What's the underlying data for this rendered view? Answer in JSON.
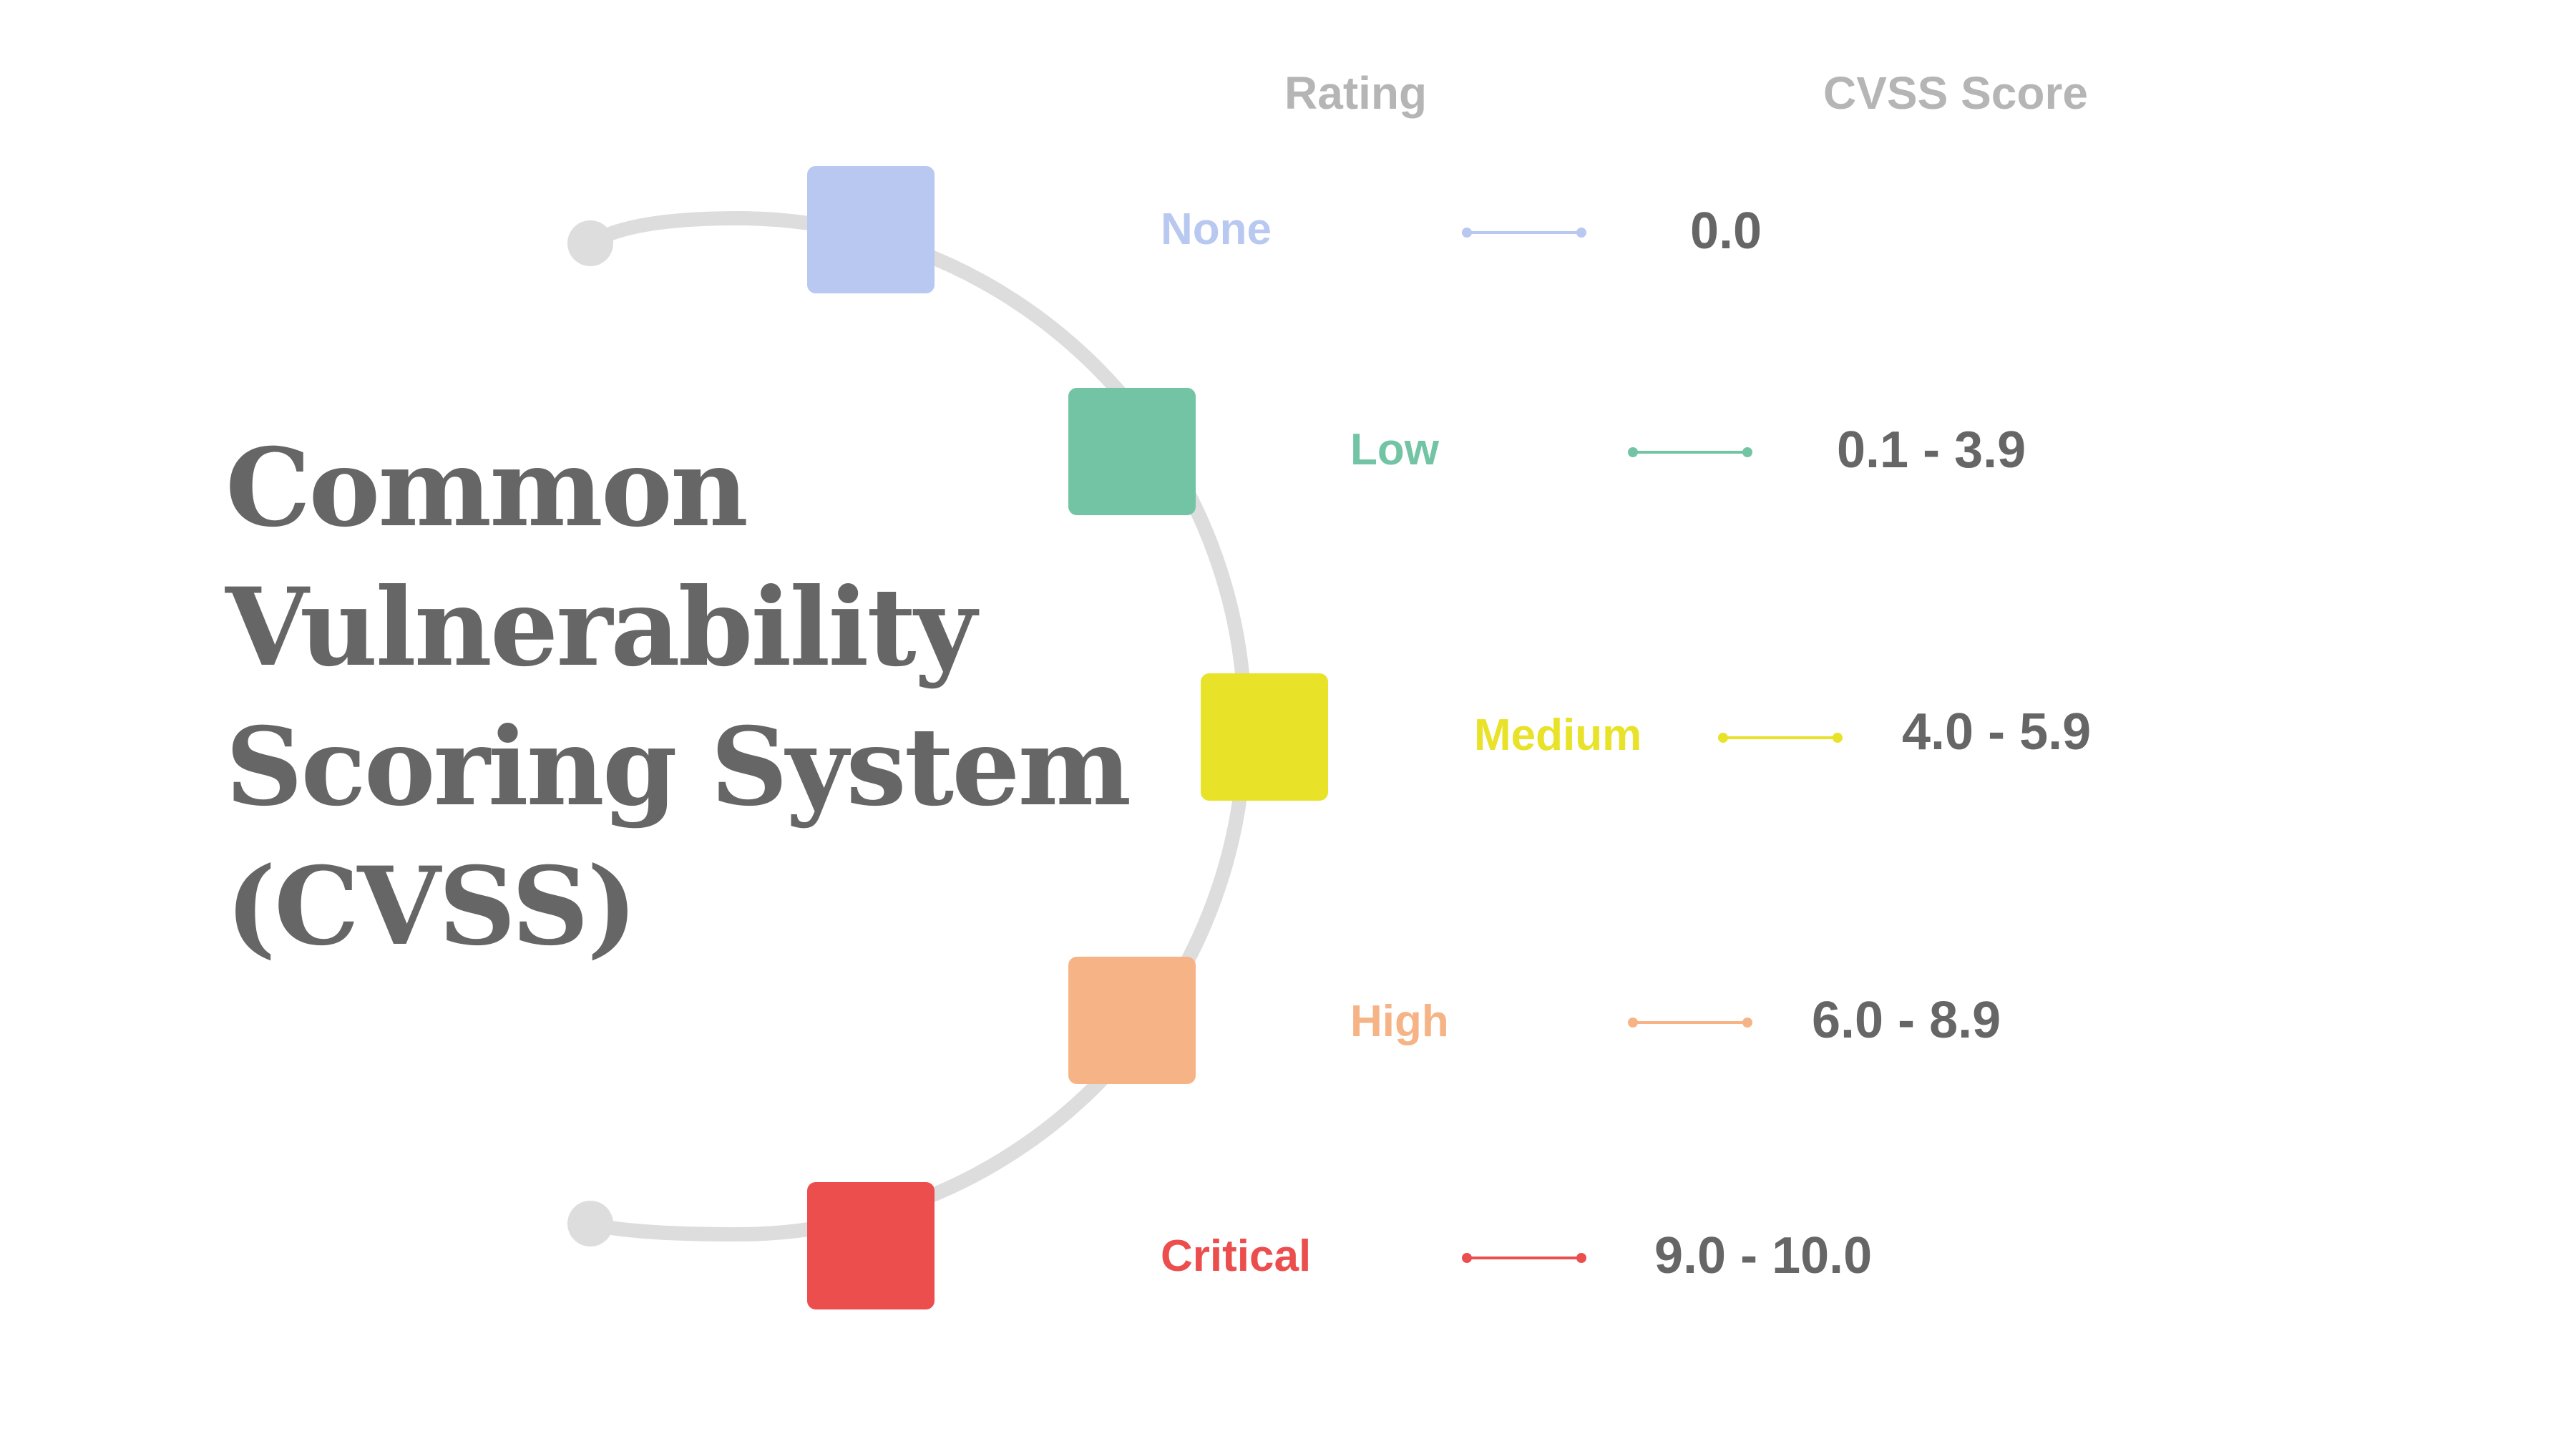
{
  "title_lines": [
    "Common",
    "Vulnerability",
    "Scoring System",
    "(CVSS)"
  ],
  "headers": {
    "rating": "Rating",
    "score": "CVSS Score"
  },
  "ratings": [
    {
      "label": "None",
      "score": "0.0",
      "color": "#b8c8f0"
    },
    {
      "label": "Low",
      "score": "0.1 - 3.9",
      "color": "#72c4a4"
    },
    {
      "label": "Medium",
      "score": "4.0 - 5.9",
      "color": "#e8e228"
    },
    {
      "label": "High",
      "score": "6.0 - 8.9",
      "color": "#f6b486"
    },
    {
      "label": "Critical",
      "score": "9.0 - 10.0",
      "color": "#ec4e4e"
    }
  ],
  "colors": {
    "title": "#666666",
    "header": "#b5b5b5",
    "score_text": "#666666",
    "arc": "#dddddd",
    "background": "#ffffff"
  }
}
